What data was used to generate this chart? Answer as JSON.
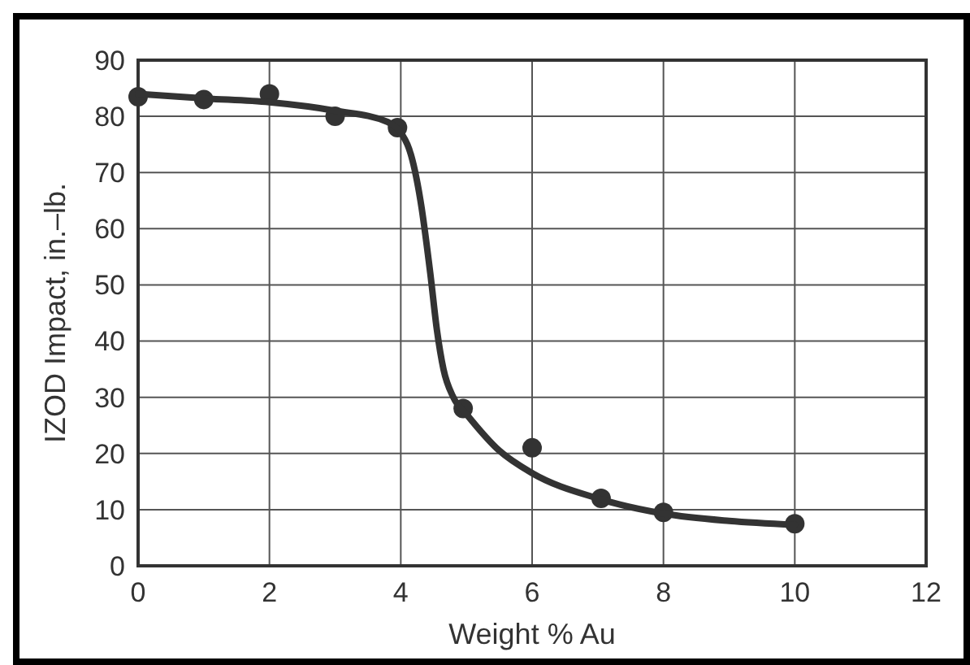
{
  "chart_data": {
    "type": "scatter",
    "xlabel": "Weight % Au",
    "ylabel": "IZOD Impact, in.–lb.",
    "xlim": [
      0,
      12
    ],
    "xticks": [
      0,
      2,
      4,
      6,
      8,
      10,
      12
    ],
    "ylim": [
      0,
      90
    ],
    "yticks": [
      0,
      10,
      20,
      30,
      40,
      50,
      60,
      70,
      80,
      90
    ],
    "grid": true,
    "marker": "circle",
    "series": [
      {
        "color": "#333333",
        "x": [
          0,
          1,
          2,
          3,
          3.95,
          4.95,
          6,
          7.05,
          8,
          10
        ],
        "values": [
          83.5,
          83,
          84,
          80,
          78,
          28,
          21,
          12,
          9.5,
          7.5
        ]
      },
      {
        "type": "line",
        "color": "#333333",
        "marker": "none",
        "x": [
          0,
          1,
          2,
          3,
          3.8,
          4.1,
          4.3,
          4.45,
          4.55,
          4.65,
          4.8,
          5,
          5.5,
          6,
          7,
          8,
          9,
          10
        ],
        "values": [
          84,
          83.2,
          82.5,
          81,
          79,
          75,
          65,
          52,
          42,
          35,
          30,
          27,
          20.5,
          16.5,
          12,
          9.3,
          8,
          7.3
        ]
      }
    ]
  }
}
